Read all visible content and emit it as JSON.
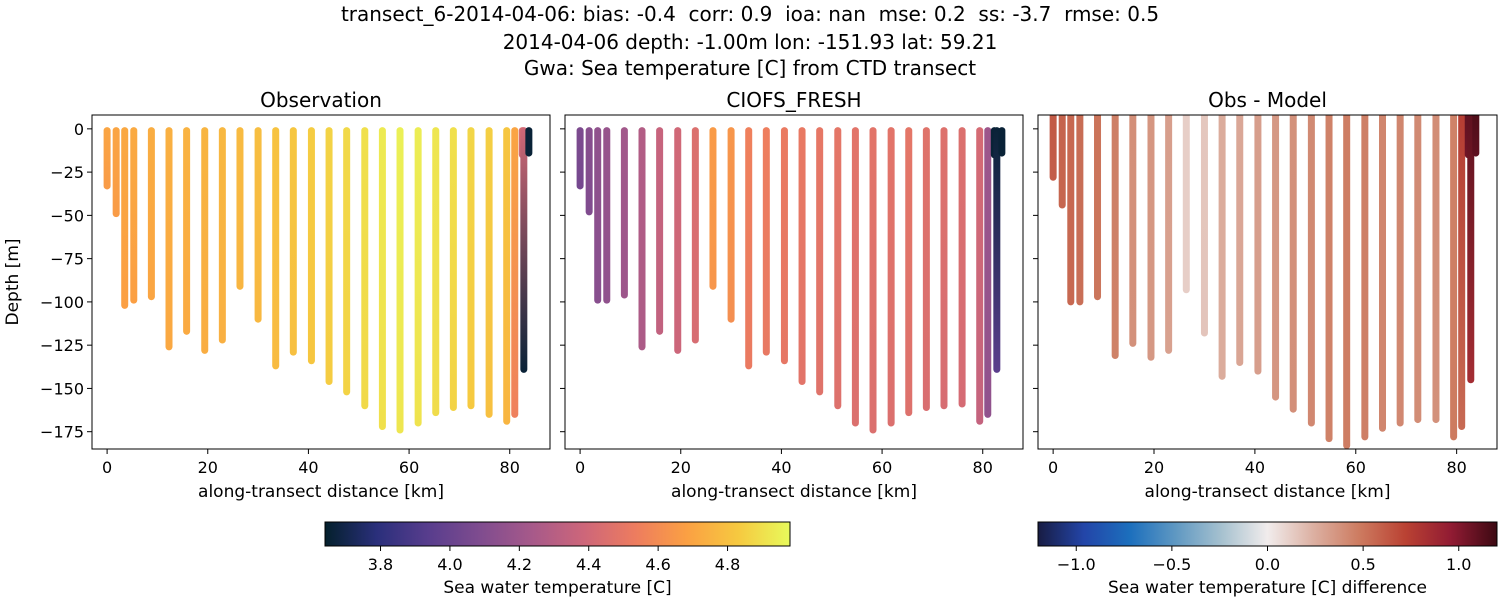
{
  "figure": {
    "title_lines": [
      "transect_6-2014-04-06: bias: -0.4  corr: 0.9  ioa: nan  mse: 0.2  ss: -3.7  rmse: 0.5",
      "2014-04-06 depth: -1.00m lon: -151.93 lat: 59.21",
      "Gwa: Sea temperature [C] from CTD transect"
    ]
  },
  "chart_data": [
    {
      "type": "scatter",
      "title": "Observation",
      "xlabel": "along-transect distance [km]",
      "ylabel": "Depth [m]",
      "xlim": [
        -3,
        88
      ],
      "ylim": [
        -185,
        8
      ],
      "xticks": [
        0,
        20,
        40,
        60,
        80
      ],
      "xtick_labels": [
        "0",
        "20",
        "40",
        "60",
        "80"
      ],
      "yticks": [
        0,
        -25,
        -50,
        -75,
        -100,
        -125,
        -150,
        -175
      ],
      "ytick_labels": [
        "0",
        "−25",
        "−50",
        "−75",
        "−100",
        "−125",
        "−150",
        "−175"
      ],
      "colormap": "thermal",
      "casts": [
        {
          "x": 0.0,
          "bottom": -33,
          "top": -1,
          "value": 4.7,
          "bottom_value": 4.66
        },
        {
          "x": 1.8,
          "bottom": -49,
          "top": -1,
          "value": 4.7,
          "bottom_value": 4.66
        },
        {
          "x": 3.5,
          "bottom": -102,
          "top": -1,
          "value": 4.71,
          "bottom_value": 4.68
        },
        {
          "x": 5.3,
          "bottom": -99,
          "top": -1,
          "value": 4.72,
          "bottom_value": 4.68
        },
        {
          "x": 8.8,
          "bottom": -97,
          "top": -1,
          "value": 4.73,
          "bottom_value": 4.7
        },
        {
          "x": 12.3,
          "bottom": -126,
          "top": -1,
          "value": 4.74,
          "bottom_value": 4.71
        },
        {
          "x": 15.8,
          "bottom": -117,
          "top": -1,
          "value": 4.75,
          "bottom_value": 4.72
        },
        {
          "x": 19.4,
          "bottom": -128,
          "top": -1,
          "value": 4.76,
          "bottom_value": 4.73
        },
        {
          "x": 22.9,
          "bottom": -122,
          "top": -1,
          "value": 4.77,
          "bottom_value": 4.74
        },
        {
          "x": 26.4,
          "bottom": -91,
          "top": -1,
          "value": 4.78,
          "bottom_value": 4.76
        },
        {
          "x": 30.0,
          "bottom": -110,
          "top": -1,
          "value": 4.79,
          "bottom_value": 4.77
        },
        {
          "x": 33.5,
          "bottom": -137,
          "top": -1,
          "value": 4.81,
          "bottom_value": 4.78
        },
        {
          "x": 37.0,
          "bottom": -129,
          "top": -1,
          "value": 4.82,
          "bottom_value": 4.8
        },
        {
          "x": 40.6,
          "bottom": -134,
          "top": -1,
          "value": 4.84,
          "bottom_value": 4.82
        },
        {
          "x": 44.1,
          "bottom": -146,
          "top": -1,
          "value": 4.86,
          "bottom_value": 4.84
        },
        {
          "x": 47.6,
          "bottom": -152,
          "top": -1,
          "value": 4.88,
          "bottom_value": 4.86
        },
        {
          "x": 51.2,
          "bottom": -160,
          "top": -1,
          "value": 4.9,
          "bottom_value": 4.88
        },
        {
          "x": 54.7,
          "bottom": -172,
          "top": -1,
          "value": 4.93,
          "bottom_value": 4.9
        },
        {
          "x": 58.2,
          "bottom": -174,
          "top": -1,
          "value": 4.95,
          "bottom_value": 4.92
        },
        {
          "x": 61.8,
          "bottom": -170,
          "top": -1,
          "value": 4.94,
          "bottom_value": 4.91
        },
        {
          "x": 65.3,
          "bottom": -164,
          "top": -1,
          "value": 4.92,
          "bottom_value": 4.89
        },
        {
          "x": 68.8,
          "bottom": -161,
          "top": -1,
          "value": 4.9,
          "bottom_value": 4.86
        },
        {
          "x": 72.3,
          "bottom": -160,
          "top": -1,
          "value": 4.87,
          "bottom_value": 4.83
        },
        {
          "x": 75.9,
          "bottom": -165,
          "top": -1,
          "value": 4.85,
          "bottom_value": 4.8
        },
        {
          "x": 79.4,
          "bottom": -169,
          "top": -1,
          "value": 4.82,
          "bottom_value": 4.76
        },
        {
          "x": 81.0,
          "bottom": -165,
          "top": -1,
          "value": 4.7,
          "bottom_value": 4.55
        },
        {
          "x": 82.5,
          "bottom": -15,
          "top": -1,
          "value": 4.45,
          "bottom_value": 4.4
        },
        {
          "x": 82.8,
          "bottom": -139,
          "top": -1,
          "value": 4.4,
          "bottom_value": 3.66
        },
        {
          "x": 83.8,
          "bottom": -14,
          "top": -1,
          "value": 3.66,
          "bottom_value": 3.66
        }
      ]
    },
    {
      "type": "scatter",
      "title": "CIOFS_FRESH",
      "xlabel": "along-transect distance [km]",
      "xlim": [
        -3,
        88
      ],
      "ylim": [
        -185,
        8
      ],
      "xticks": [
        0,
        20,
        40,
        60,
        80
      ],
      "xtick_labels": [
        "0",
        "20",
        "40",
        "60",
        "80"
      ],
      "yticks": [
        0,
        -25,
        -50,
        -75,
        -100,
        -125,
        -150,
        -175
      ],
      "colormap": "thermal",
      "casts": [
        {
          "x": 0.0,
          "bottom": -33,
          "top": -1,
          "value": 4.08,
          "bottom_value": 4.05
        },
        {
          "x": 1.8,
          "bottom": -48,
          "top": -1,
          "value": 4.12,
          "bottom_value": 4.09
        },
        {
          "x": 3.5,
          "bottom": -99,
          "top": -1,
          "value": 4.15,
          "bottom_value": 4.12
        },
        {
          "x": 5.3,
          "bottom": -99,
          "top": -1,
          "value": 4.18,
          "bottom_value": 4.15
        },
        {
          "x": 8.8,
          "bottom": -96,
          "top": -1,
          "value": 4.22,
          "bottom_value": 4.2
        },
        {
          "x": 12.3,
          "bottom": -126,
          "top": -1,
          "value": 4.28,
          "bottom_value": 4.26
        },
        {
          "x": 15.8,
          "bottom": -117,
          "top": -1,
          "value": 4.36,
          "bottom_value": 4.34
        },
        {
          "x": 19.4,
          "bottom": -128,
          "top": -1,
          "value": 4.4,
          "bottom_value": 4.38
        },
        {
          "x": 22.9,
          "bottom": -122,
          "top": -1,
          "value": 4.45,
          "bottom_value": 4.43
        },
        {
          "x": 26.4,
          "bottom": -91,
          "top": -1,
          "value": 4.66,
          "bottom_value": 4.64
        },
        {
          "x": 30.0,
          "bottom": -110,
          "top": -1,
          "value": 4.64,
          "bottom_value": 4.61
        },
        {
          "x": 33.5,
          "bottom": -137,
          "top": -1,
          "value": 4.55,
          "bottom_value": 4.52
        },
        {
          "x": 37.0,
          "bottom": -129,
          "top": -1,
          "value": 4.54,
          "bottom_value": 4.51
        },
        {
          "x": 40.6,
          "bottom": -134,
          "top": -1,
          "value": 4.52,
          "bottom_value": 4.5
        },
        {
          "x": 44.1,
          "bottom": -146,
          "top": -1,
          "value": 4.51,
          "bottom_value": 4.48
        },
        {
          "x": 47.6,
          "bottom": -152,
          "top": -1,
          "value": 4.5,
          "bottom_value": 4.47
        },
        {
          "x": 51.2,
          "bottom": -160,
          "top": -1,
          "value": 4.49,
          "bottom_value": 4.46
        },
        {
          "x": 54.7,
          "bottom": -170,
          "top": -1,
          "value": 4.48,
          "bottom_value": 4.45
        },
        {
          "x": 58.2,
          "bottom": -174,
          "top": -1,
          "value": 4.48,
          "bottom_value": 4.45
        },
        {
          "x": 61.8,
          "bottom": -170,
          "top": -1,
          "value": 4.48,
          "bottom_value": 4.45
        },
        {
          "x": 65.3,
          "bottom": -164,
          "top": -1,
          "value": 4.49,
          "bottom_value": 4.46
        },
        {
          "x": 68.8,
          "bottom": -161,
          "top": -1,
          "value": 4.47,
          "bottom_value": 4.44
        },
        {
          "x": 72.3,
          "bottom": -160,
          "top": -1,
          "value": 4.46,
          "bottom_value": 4.43
        },
        {
          "x": 75.9,
          "bottom": -159,
          "top": -1,
          "value": 4.45,
          "bottom_value": 4.42
        },
        {
          "x": 79.4,
          "bottom": -169,
          "top": -1,
          "value": 4.42,
          "bottom_value": 4.35
        },
        {
          "x": 81.0,
          "bottom": -165,
          "top": -1,
          "value": 4.2,
          "bottom_value": 4.15
        },
        {
          "x": 82.3,
          "bottom": -15,
          "top": -1,
          "value": 3.66,
          "bottom_value": 3.66
        },
        {
          "x": 82.8,
          "bottom": -139,
          "top": -1,
          "value": 3.66,
          "bottom_value": 3.95
        },
        {
          "x": 83.8,
          "bottom": -14,
          "top": -1,
          "value": 3.66,
          "bottom_value": 3.66
        }
      ]
    },
    {
      "type": "scatter",
      "title": "Obs - Model",
      "xlabel": "along-transect distance [km]",
      "xlim": [
        -3,
        88
      ],
      "ylim": [
        -185,
        8
      ],
      "xticks": [
        0,
        20,
        40,
        60,
        80
      ],
      "xtick_labels": [
        "0",
        "20",
        "40",
        "60",
        "80"
      ],
      "yticks": [
        0,
        -25,
        -50,
        -75,
        -100,
        -125,
        -150,
        -175
      ],
      "colormap": "balance",
      "casts": [
        {
          "x": 0.0,
          "bottom": -28,
          "top": 8,
          "value": 0.62,
          "bottom_value": 0.61
        },
        {
          "x": 1.8,
          "bottom": -44,
          "top": 8,
          "value": 0.58,
          "bottom_value": 0.57
        },
        {
          "x": 3.5,
          "bottom": -100,
          "top": 8,
          "value": 0.56,
          "bottom_value": 0.56
        },
        {
          "x": 5.3,
          "bottom": -100,
          "top": 8,
          "value": 0.54,
          "bottom_value": 0.53
        },
        {
          "x": 8.8,
          "bottom": -97,
          "top": 8,
          "value": 0.51,
          "bottom_value": 0.5
        },
        {
          "x": 12.3,
          "bottom": -131,
          "top": 8,
          "value": 0.46,
          "bottom_value": 0.45
        },
        {
          "x": 15.8,
          "bottom": -124,
          "top": 8,
          "value": 0.39,
          "bottom_value": 0.38
        },
        {
          "x": 19.4,
          "bottom": -132,
          "top": 8,
          "value": 0.36,
          "bottom_value": 0.35
        },
        {
          "x": 22.9,
          "bottom": -128,
          "top": 8,
          "value": 0.32,
          "bottom_value": 0.31
        },
        {
          "x": 26.4,
          "bottom": -93,
          "top": 8,
          "value": 0.12,
          "bottom_value": 0.12
        },
        {
          "x": 30.0,
          "bottom": -118,
          "top": 8,
          "value": 0.15,
          "bottom_value": 0.16
        },
        {
          "x": 33.5,
          "bottom": -143,
          "top": 8,
          "value": 0.26,
          "bottom_value": 0.26
        },
        {
          "x": 37.0,
          "bottom": -135,
          "top": 8,
          "value": 0.28,
          "bottom_value": 0.29
        },
        {
          "x": 40.6,
          "bottom": -140,
          "top": 8,
          "value": 0.32,
          "bottom_value": 0.32
        },
        {
          "x": 44.1,
          "bottom": -155,
          "top": 8,
          "value": 0.35,
          "bottom_value": 0.36
        },
        {
          "x": 47.6,
          "bottom": -162,
          "top": 8,
          "value": 0.38,
          "bottom_value": 0.39
        },
        {
          "x": 51.2,
          "bottom": -170,
          "top": 8,
          "value": 0.41,
          "bottom_value": 0.42
        },
        {
          "x": 54.7,
          "bottom": -179,
          "top": 8,
          "value": 0.45,
          "bottom_value": 0.45
        },
        {
          "x": 58.2,
          "bottom": -183,
          "top": 8,
          "value": 0.47,
          "bottom_value": 0.47
        },
        {
          "x": 61.8,
          "bottom": -178,
          "top": 8,
          "value": 0.46,
          "bottom_value": 0.46
        },
        {
          "x": 65.3,
          "bottom": -173,
          "top": 8,
          "value": 0.43,
          "bottom_value": 0.43
        },
        {
          "x": 68.8,
          "bottom": -170,
          "top": 8,
          "value": 0.43,
          "bottom_value": 0.42
        },
        {
          "x": 72.3,
          "bottom": -168,
          "top": 8,
          "value": 0.41,
          "bottom_value": 0.4
        },
        {
          "x": 75.9,
          "bottom": -168,
          "top": 8,
          "value": 0.4,
          "bottom_value": 0.38
        },
        {
          "x": 79.4,
          "bottom": -178,
          "top": 8,
          "value": 0.45,
          "bottom_value": 0.48
        },
        {
          "x": 81.0,
          "bottom": -172,
          "top": 8,
          "value": 0.75,
          "bottom_value": 0.55
        },
        {
          "x": 82.3,
          "bottom": -15,
          "top": 8,
          "value": 1.1,
          "bottom_value": 1.05
        },
        {
          "x": 82.8,
          "bottom": -145,
          "top": 8,
          "value": 1.1,
          "bottom_value": 0.85
        },
        {
          "x": 83.8,
          "bottom": -14,
          "top": 8,
          "value": 1.15,
          "bottom_value": 1.1
        }
      ]
    }
  ],
  "colorbars": [
    {
      "label": "Sea water temperature [C]",
      "range": [
        3.64,
        4.98
      ],
      "ticks": [
        3.8,
        4.0,
        4.2,
        4.4,
        4.6,
        4.8
      ],
      "tick_labels": [
        "3.8",
        "4.0",
        "4.2",
        "4.4",
        "4.6",
        "4.8"
      ],
      "colormap": "thermal"
    },
    {
      "label": "Sea water temperature [C] difference",
      "range": [
        -1.2,
        1.2
      ],
      "ticks": [
        -1.0,
        -0.5,
        0.0,
        0.5,
        1.0
      ],
      "tick_labels": [
        "−1.0",
        "−0.5",
        "0.0",
        "0.5",
        "1.0"
      ],
      "colormap": "balance"
    }
  ],
  "colormaps": {
    "thermal": [
      "#04202c",
      "#2a2f7b",
      "#583d8d",
      "#7f4c8f",
      "#a6598a",
      "#cd667a",
      "#ed7c5f",
      "#fba043",
      "#f6c940",
      "#e8fa5b"
    ],
    "balance": [
      "#181c43",
      "#2345a8",
      "#1c6fbd",
      "#5f98c2",
      "#a6c1cf",
      "#f1ecec",
      "#dcb0a2",
      "#cd7b60",
      "#ba4233",
      "#911b33",
      "#3c0912"
    ]
  }
}
